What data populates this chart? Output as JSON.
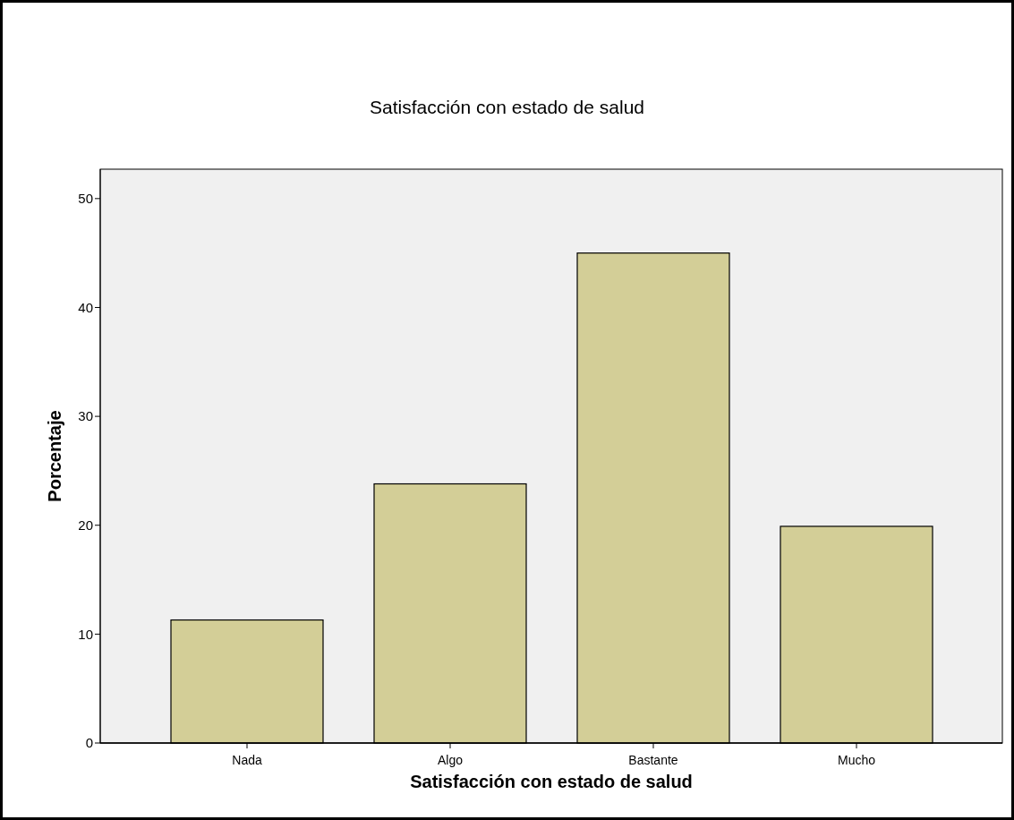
{
  "chart_data": {
    "type": "bar",
    "title": "Satisfacción con estado de salud",
    "xlabel": "Satisfacción con estado de salud",
    "ylabel": "Porcentaje",
    "categories": [
      "Nada",
      "Algo",
      "Bastante",
      "Mucho"
    ],
    "values": [
      11.3,
      23.8,
      45.0,
      19.9
    ],
    "color": "#d3ce97",
    "ylim": [
      0,
      52.7
    ],
    "yticks": [
      0,
      10,
      20,
      30,
      40,
      50
    ],
    "grid": false
  }
}
